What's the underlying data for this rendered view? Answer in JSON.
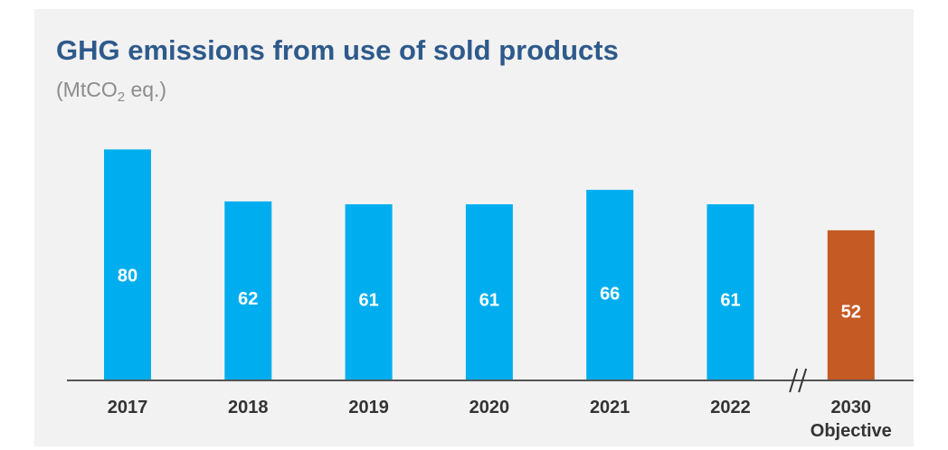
{
  "chart_data": {
    "type": "bar",
    "title": "GHG emissions from use of sold products",
    "subtitle": {
      "prefix": "(MtCO",
      "subscript": "2",
      "suffix": " eq.)"
    },
    "categories": [
      "2017",
      "2018",
      "2019",
      "2020",
      "2021",
      "2022",
      "2030"
    ],
    "category_sublabels": [
      "",
      "",
      "",
      "",
      "",
      "",
      "Objective"
    ],
    "values": [
      80,
      62,
      61,
      61,
      66,
      61,
      52
    ],
    "bar_colors": [
      "#00aeef",
      "#00aeef",
      "#00aeef",
      "#00aeef",
      "#00aeef",
      "#00aeef",
      "#c55a24"
    ],
    "value_label_color": "#ffffff",
    "tick_label_color": "#333333",
    "axis_break_marker": "//",
    "xlabel": "",
    "ylabel": "",
    "ylim": [
      0,
      82
    ],
    "grid": false,
    "legend": "none"
  }
}
